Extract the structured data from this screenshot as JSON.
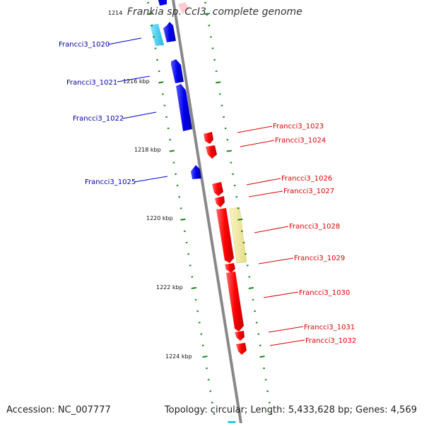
{
  "genome": {
    "title": "Frankia sp. CcI3, complete genome",
    "accession": "Accession: NC_007777",
    "summary": "Topology: circular; Length: 5,433,628 bp; Genes: 4,569",
    "colors": {
      "forward": "#ff0000",
      "reverse": "#0000ee",
      "rna": "#2fc7e8",
      "highlight": "#eee899",
      "tick": "#1a8a1a",
      "backbone": "#888888"
    }
  },
  "scale": {
    "unit": "kbp",
    "ticks": [
      {
        "label": "1214"
      },
      {
        "label": "1216 kbp"
      },
      {
        "label": "1218 kbp"
      },
      {
        "label": "1220 kbp"
      },
      {
        "label": "1222 kbp"
      },
      {
        "label": "1224 kbp"
      }
    ]
  },
  "genes": {
    "reverse": [
      {
        "label": "Francci3_1020"
      },
      {
        "label": "Francci3_1021"
      },
      {
        "label": "Francci3_1022"
      },
      {
        "label": "Francci3_1025"
      }
    ],
    "forward": [
      {
        "label": "Francci3_1023"
      },
      {
        "label": "Francci3_1024"
      },
      {
        "label": "Francci3_1026"
      },
      {
        "label": "Francci3_1027"
      },
      {
        "label": "Francci3_1028"
      },
      {
        "label": "Francci3_1029"
      },
      {
        "label": "Francci3_1030"
      },
      {
        "label": "Francci3_1031"
      },
      {
        "label": "Francci3_1032"
      }
    ]
  }
}
